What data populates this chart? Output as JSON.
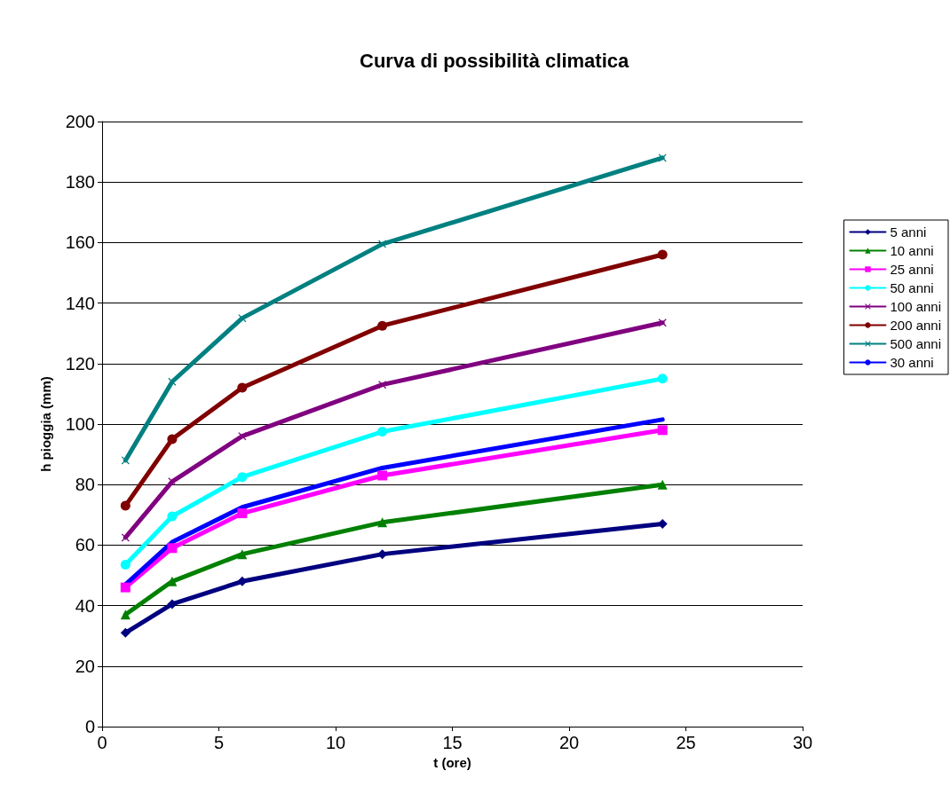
{
  "chart_data": {
    "type": "line",
    "title": "Curva di possibilità climatica",
    "xlabel": "t (ore)",
    "ylabel": "h pioggia (mm)",
    "x": [
      1,
      3,
      6,
      12,
      24
    ],
    "xlim": [
      0,
      30
    ],
    "xticks": [
      0,
      5,
      10,
      15,
      20,
      25,
      30
    ],
    "ylim": [
      0,
      200
    ],
    "yticks": [
      0,
      20,
      40,
      60,
      80,
      100,
      120,
      140,
      160,
      180,
      200
    ],
    "grid": "y",
    "legend": "right",
    "line_style": "solid",
    "series": [
      {
        "name": "5 anni",
        "color": "#000080",
        "marker": "diamond",
        "values": [
          31,
          40.5,
          48,
          57,
          67
        ]
      },
      {
        "name": "10 anni",
        "color": "#008000",
        "marker": "triangle",
        "values": [
          37,
          48,
          57,
          67.5,
          80
        ]
      },
      {
        "name": "25 anni",
        "color": "#ff00ff",
        "marker": "square",
        "values": [
          46,
          59,
          70.5,
          83,
          98
        ]
      },
      {
        "name": "50 anni",
        "color": "#00ffff",
        "marker": "circle",
        "values": [
          53.5,
          69.5,
          82.5,
          97.5,
          115
        ]
      },
      {
        "name": "100 anni",
        "color": "#800080",
        "marker": "cross",
        "values": [
          62.5,
          81,
          96,
          113,
          133.5
        ]
      },
      {
        "name": "200 anni",
        "color": "#800000",
        "marker": "circle",
        "values": [
          73,
          95,
          112,
          132.5,
          156
        ]
      },
      {
        "name": "500 anni",
        "color": "#008080",
        "marker": "cross",
        "values": [
          88,
          114,
          135,
          159.5,
          188
        ]
      },
      {
        "name": "30 anni",
        "color": "#0000ff",
        "marker": "none",
        "values": [
          47,
          61,
          72.5,
          85.5,
          101.5
        ]
      }
    ]
  }
}
